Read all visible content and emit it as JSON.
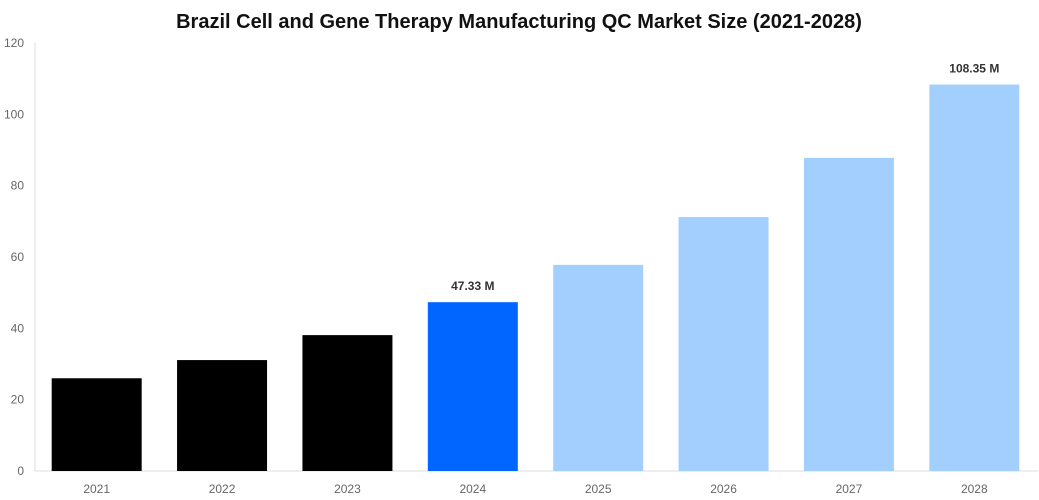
{
  "chart_data": {
    "type": "bar",
    "title": "Brazil Cell and Gene Therapy Manufacturing QC Market Size (2021-2028)",
    "xlabel": "",
    "ylabel": "",
    "categories": [
      "2021",
      "2022",
      "2023",
      "2024",
      "2025",
      "2026",
      "2027",
      "2028"
    ],
    "values": [
      26.0,
      31.1,
      38.1,
      47.33,
      57.8,
      71.2,
      87.8,
      108.35
    ],
    "data_labels": {
      "3": "47.33 M",
      "7": "108.35 M"
    },
    "colors": [
      "#000000",
      "#000000",
      "#000000",
      "#0066ff",
      "#a3cfff",
      "#a3cfff",
      "#a3cfff",
      "#a3cfff"
    ],
    "ylim": [
      0,
      120
    ],
    "yticks": [
      0,
      20,
      40,
      60,
      80,
      100,
      120
    ],
    "grid": false,
    "legend": "none"
  }
}
